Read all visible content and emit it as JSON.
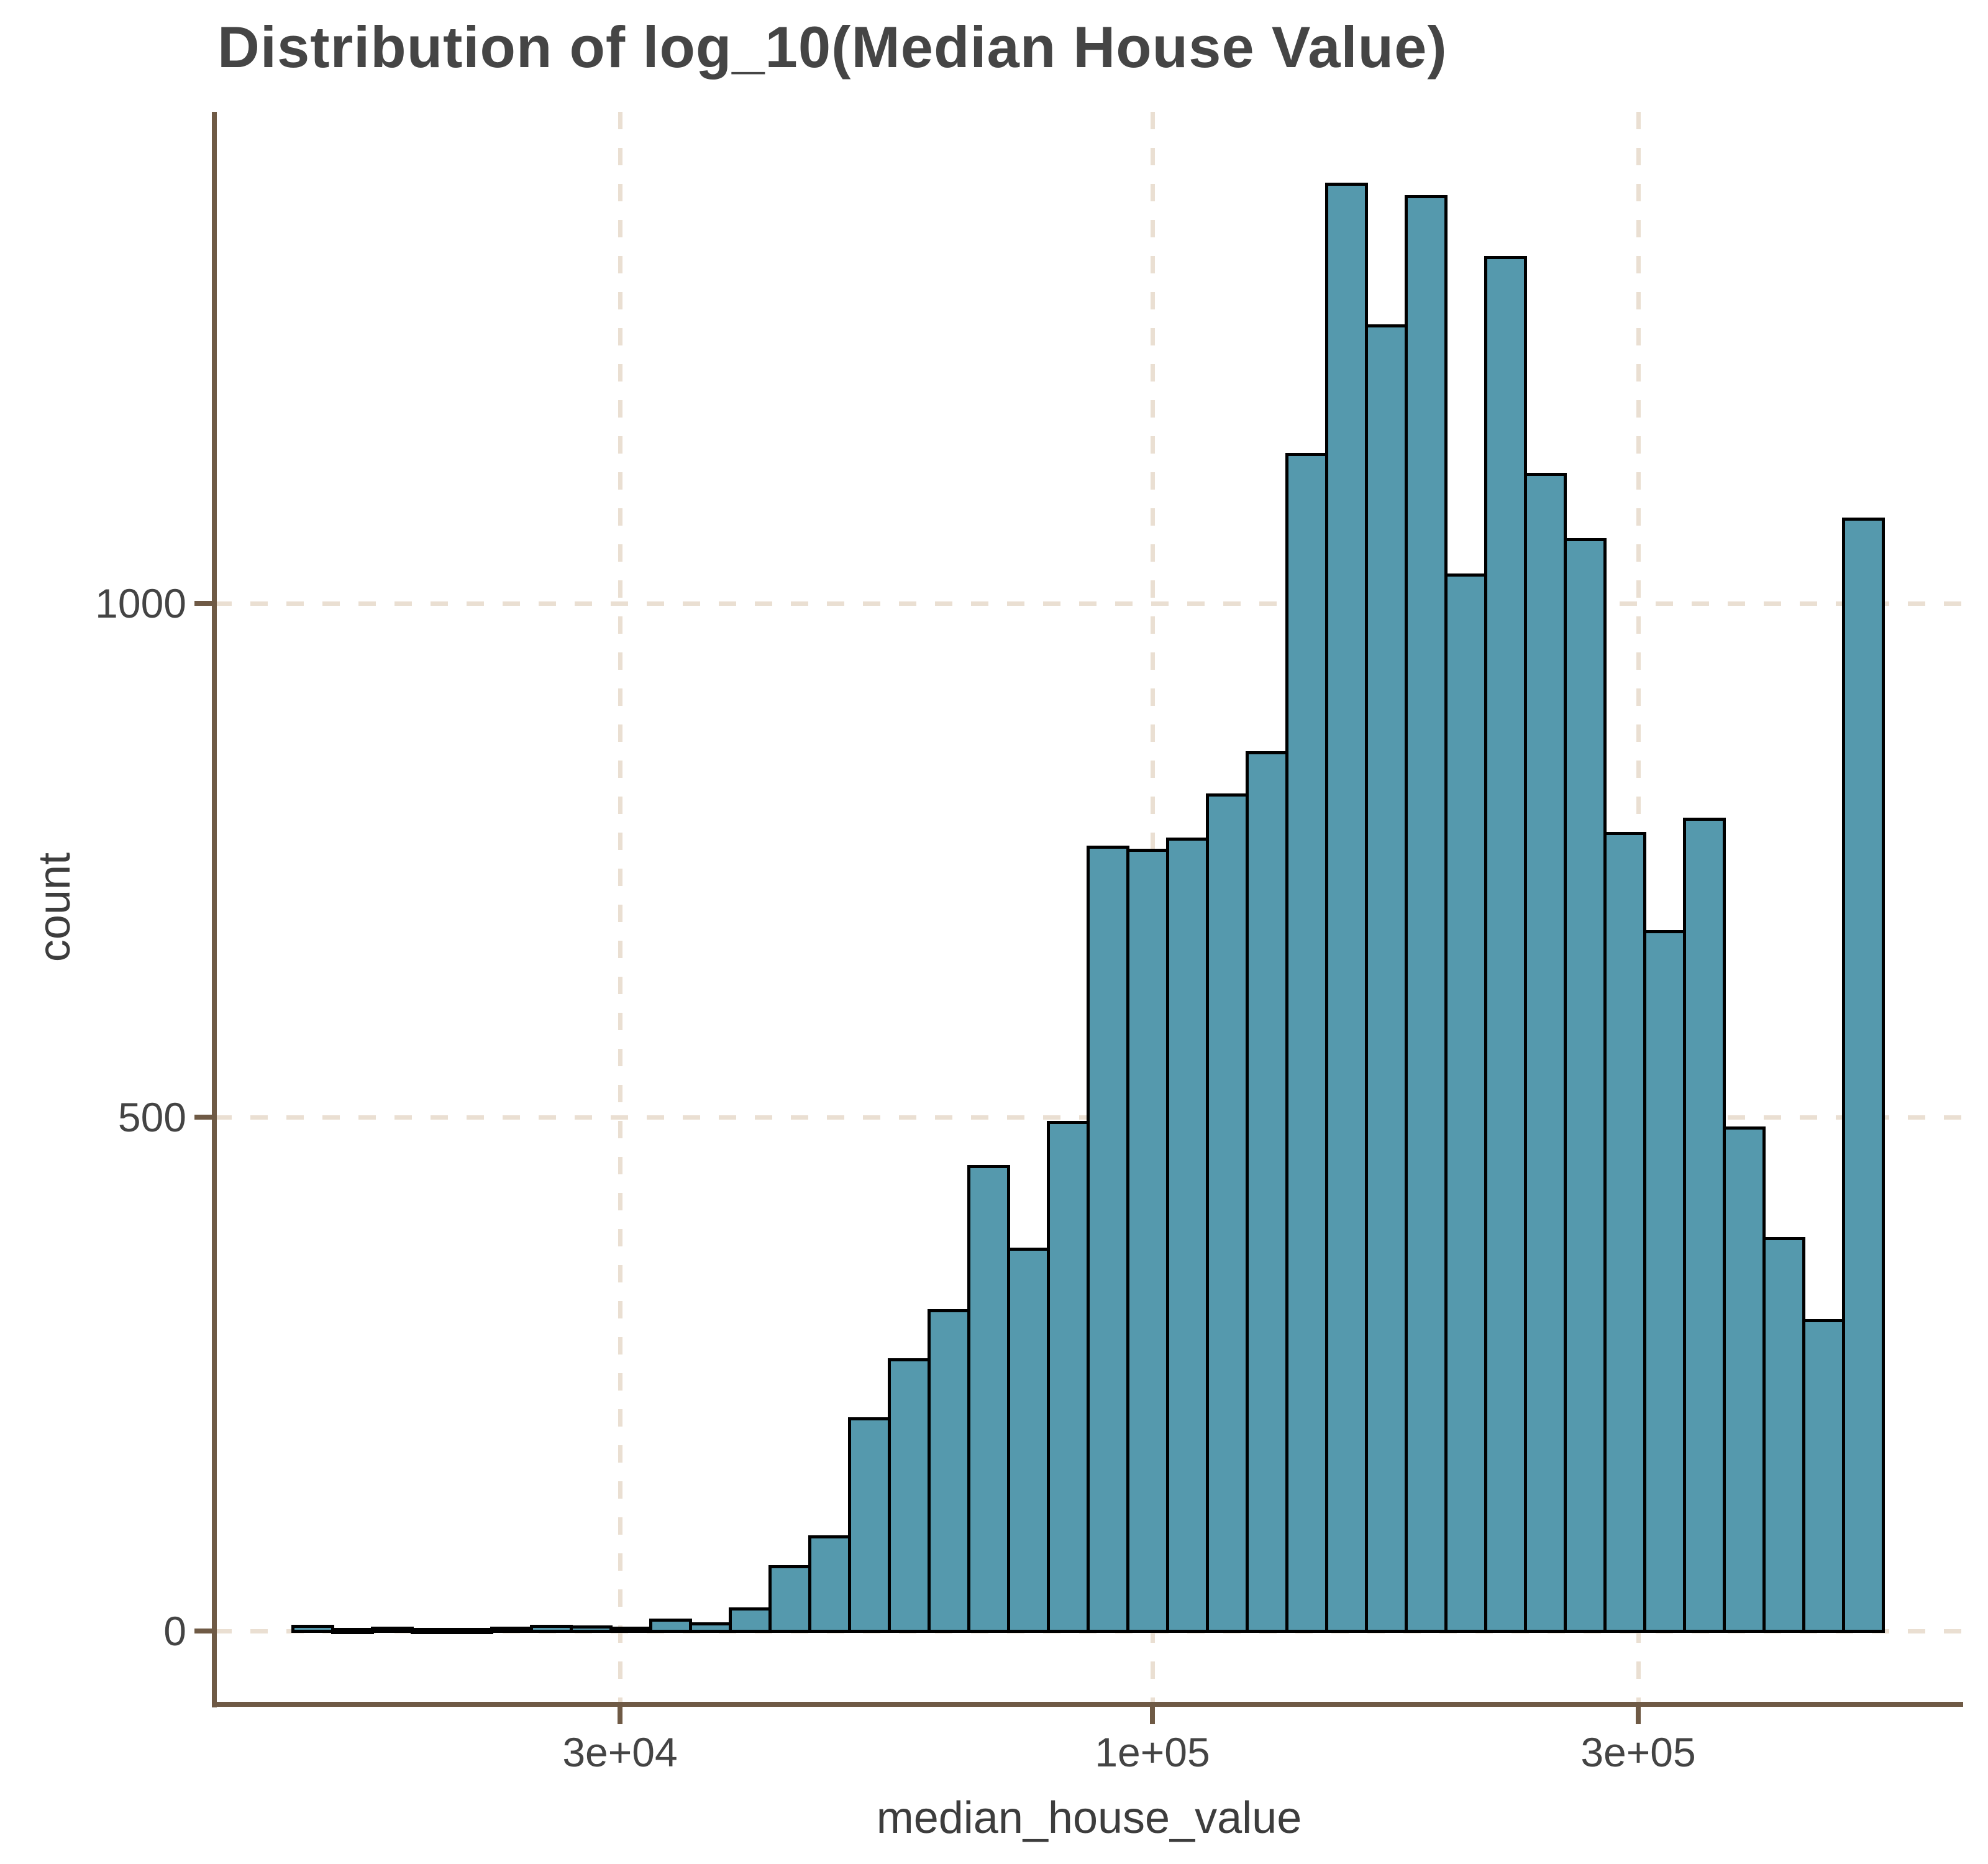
{
  "title": "Distribution of log_10(Median House Value)",
  "axes": {
    "x": {
      "label": "median_house_value",
      "scale": "log10",
      "ticks": [
        {
          "label": "3e+04",
          "value": 30000
        },
        {
          "label": "1e+05",
          "value": 100000
        },
        {
          "label": "3e+05",
          "value": 300000
        }
      ]
    },
    "y": {
      "label": "count",
      "ticks": [
        {
          "label": "0",
          "value": 0
        },
        {
          "label": "500",
          "value": 500
        },
        {
          "label": "1000",
          "value": 1000
        }
      ]
    }
  },
  "style": {
    "bar_fill": "#5599ad",
    "bar_border": "#000000",
    "grid_color": "#eadfd2",
    "axis_color": "#6f5a45",
    "text_color": "#444444",
    "title_color": "#454545",
    "background": "#ffffff"
  },
  "chart_data": {
    "type": "bar",
    "subtype": "histogram",
    "title": "Distribution of log_10(Median House Value)",
    "xlabel": "median_house_value",
    "ylabel": "count",
    "x_scale": "log10",
    "grid": "dashed major gridlines on",
    "legend_position": "none",
    "ylim": [
      0,
      1478
    ],
    "x_domain": [
      14308,
      522078
    ],
    "bins": [
      {
        "x0": 14308,
        "x1": 15657,
        "count": 5
      },
      {
        "x0": 15657,
        "x1": 17132,
        "count": 2
      },
      {
        "x0": 17132,
        "x1": 18737,
        "count": 3
      },
      {
        "x0": 18737,
        "x1": 20503,
        "count": 2
      },
      {
        "x0": 20503,
        "x1": 22434,
        "count": 2
      },
      {
        "x0": 22434,
        "x1": 24546,
        "count": 3
      },
      {
        "x0": 24546,
        "x1": 26855,
        "count": 5
      },
      {
        "x0": 26855,
        "x1": 29385,
        "count": 4
      },
      {
        "x0": 29385,
        "x1": 32136,
        "count": 3
      },
      {
        "x0": 32136,
        "x1": 35163,
        "count": 11
      },
      {
        "x0": 35163,
        "x1": 38474,
        "count": 7
      },
      {
        "x0": 38474,
        "x1": 42094,
        "count": 22
      },
      {
        "x0": 42094,
        "x1": 46056,
        "count": 63
      },
      {
        "x0": 46056,
        "x1": 50390,
        "count": 92
      },
      {
        "x0": 50390,
        "x1": 55132,
        "count": 207
      },
      {
        "x0": 55132,
        "x1": 60320,
        "count": 264
      },
      {
        "x0": 60320,
        "x1": 65997,
        "count": 312
      },
      {
        "x0": 65997,
        "x1": 72208,
        "count": 452
      },
      {
        "x0": 72208,
        "x1": 79003,
        "count": 372
      },
      {
        "x0": 79003,
        "x1": 86438,
        "count": 495
      },
      {
        "x0": 86438,
        "x1": 94572,
        "count": 763
      },
      {
        "x0": 94572,
        "x1": 103429,
        "count": 760
      },
      {
        "x0": 103429,
        "x1": 113162,
        "count": 771
      },
      {
        "x0": 113162,
        "x1": 123812,
        "count": 814
      },
      {
        "x0": 123812,
        "x1": 135463,
        "count": 855
      },
      {
        "x0": 135463,
        "x1": 148211,
        "count": 1145
      },
      {
        "x0": 148211,
        "x1": 162159,
        "count": 1408
      },
      {
        "x0": 162159,
        "x1": 177420,
        "count": 1270
      },
      {
        "x0": 177420,
        "x1": 194117,
        "count": 1396
      },
      {
        "x0": 194117,
        "x1": 212386,
        "count": 1028
      },
      {
        "x0": 212386,
        "x1": 232374,
        "count": 1337
      },
      {
        "x0": 232374,
        "x1": 254243,
        "count": 1126
      },
      {
        "x0": 254243,
        "x1": 278170,
        "count": 1062
      },
      {
        "x0": 278170,
        "x1": 304348,
        "count": 776
      },
      {
        "x0": 304348,
        "x1": 332990,
        "count": 681
      },
      {
        "x0": 332990,
        "x1": 364327,
        "count": 790
      },
      {
        "x0": 364327,
        "x1": 398614,
        "count": 490
      },
      {
        "x0": 398614,
        "x1": 436128,
        "count": 382
      },
      {
        "x0": 436128,
        "x1": 477171,
        "count": 302
      },
      {
        "x0": 477171,
        "x1": 522078,
        "count": 1082
      }
    ]
  }
}
